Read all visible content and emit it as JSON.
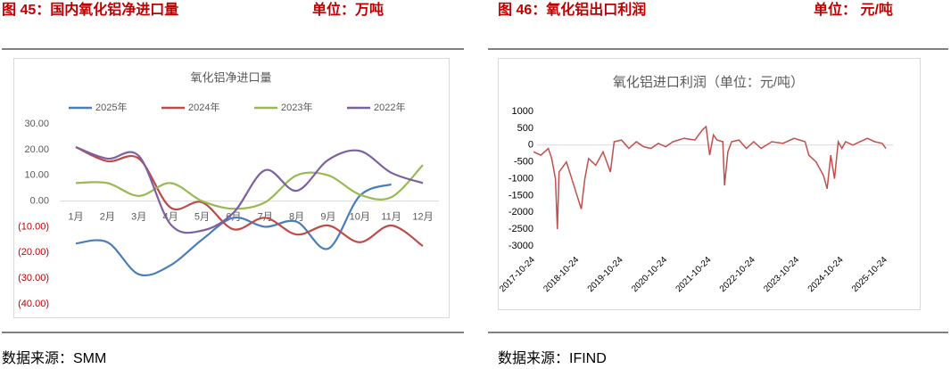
{
  "figures": [
    {
      "caption": "图 45：国内氧化铝净进口量",
      "unit": "单位：万吨",
      "source": "数据来源：SMM"
    },
    {
      "caption": "图 46：氧化铝出口利润",
      "unit": "单位： 元/吨",
      "source": "数据来源：IFIND"
    }
  ],
  "chart_data": [
    {
      "type": "line",
      "title": "氧化铝净进口量",
      "smooth": true,
      "negative_label_color": "#c00000",
      "categories": [
        "1月",
        "2月",
        "3月",
        "4月",
        "5月",
        "6月",
        "7月",
        "8月",
        "9月",
        "10月",
        "11月",
        "12月"
      ],
      "series": [
        {
          "name": "2025年",
          "color": "#4a7ebb",
          "values": [
            -16.5,
            -16,
            -28.5,
            -25,
            -15,
            -6.5,
            -10,
            -8,
            -18.5,
            2,
            6.5,
            null
          ]
        },
        {
          "name": "2024年",
          "color": "#be4b48",
          "values": [
            21,
            15.5,
            16.5,
            -2.5,
            -0.5,
            -11,
            -6.5,
            -13,
            -9.5,
            -16,
            -9.5,
            -17.5
          ]
        },
        {
          "name": "2023年",
          "color": "#98b954",
          "values": [
            7,
            7,
            2,
            7,
            0,
            -3,
            -0.5,
            10,
            10,
            2.5,
            1.5,
            14
          ]
        },
        {
          "name": "2022年",
          "color": "#7d60a0",
          "values": [
            21,
            16.5,
            17.5,
            -9,
            -11.5,
            -4.5,
            12,
            4,
            16,
            19.5,
            11,
            7
          ]
        }
      ],
      "ylim": [
        -40,
        30
      ],
      "yticks": [
        {
          "value": 30,
          "label": "30.00"
        },
        {
          "value": 20,
          "label": "20.00"
        },
        {
          "value": 10,
          "label": "10.00"
        },
        {
          "value": 0,
          "label": "0.00"
        },
        {
          "value": -10,
          "label": "(10.00)"
        },
        {
          "value": -20,
          "label": "(20.00)"
        },
        {
          "value": -30,
          "label": "(30.00)"
        },
        {
          "value": -40,
          "label": "(40.00)"
        }
      ]
    },
    {
      "type": "line",
      "title": "氧化铝进口利润（单位：元/吨）",
      "color": "#c0504d",
      "x": [
        "2017-10-24",
        "2017-12-24",
        "2018-02-24",
        "2018-03-24",
        "2018-04-24",
        "2018-05-10",
        "2018-05-24",
        "2018-07-24",
        "2018-09-24",
        "2018-11-24",
        "2018-12-24",
        "2019-01-24",
        "2019-03-24",
        "2019-05-24",
        "2019-07-24",
        "2019-08-24",
        "2019-10-24",
        "2019-12-24",
        "2020-02-24",
        "2020-04-24",
        "2020-06-24",
        "2020-08-24",
        "2020-10-24",
        "2020-12-24",
        "2021-03-24",
        "2021-06-24",
        "2021-08-24",
        "2021-09-24",
        "2021-10-24",
        "2021-11-24",
        "2021-12-24",
        "2022-02-10",
        "2022-02-24",
        "2022-03-24",
        "2022-04-24",
        "2022-06-24",
        "2022-08-24",
        "2022-10-24",
        "2022-12-24",
        "2023-03-24",
        "2023-06-24",
        "2023-09-24",
        "2023-12-24",
        "2024-01-24",
        "2024-03-24",
        "2024-05-24",
        "2024-06-24",
        "2024-07-24",
        "2024-08-24",
        "2024-09-24",
        "2024-10-24",
        "2024-11-24",
        "2025-01-24",
        "2025-03-24",
        "2025-05-24",
        "2025-07-24",
        "2025-09-24",
        "2025-10-24"
      ],
      "values": [
        -200,
        -300,
        -100,
        -400,
        -1000,
        -2500,
        -800,
        -500,
        -1200,
        -1900,
        -1000,
        -400,
        -600,
        -200,
        -800,
        100,
        150,
        -100,
        100,
        -50,
        -100,
        50,
        -50,
        100,
        200,
        150,
        450,
        550,
        -300,
        300,
        150,
        100,
        -1200,
        -200,
        100,
        150,
        -100,
        100,
        -100,
        100,
        50,
        200,
        100,
        -300,
        -500,
        -900,
        -1300,
        -300,
        -1000,
        100,
        -100,
        100,
        0,
        100,
        200,
        100,
        50,
        -100
      ],
      "xlim": [
        "2017-10-24",
        "2025-10-24"
      ],
      "xticks": [
        "2017-10-24",
        "2018-10-24",
        "2019-10-24",
        "2020-10-24",
        "2021-10-24",
        "2022-10-24",
        "2023-10-24",
        "2024-10-24",
        "2025-10-24"
      ],
      "ylim": [
        -3000,
        1000
      ],
      "yticks": [
        1000,
        500,
        0,
        -500,
        -1000,
        -1500,
        -2000,
        -2500,
        -3000
      ]
    }
  ]
}
